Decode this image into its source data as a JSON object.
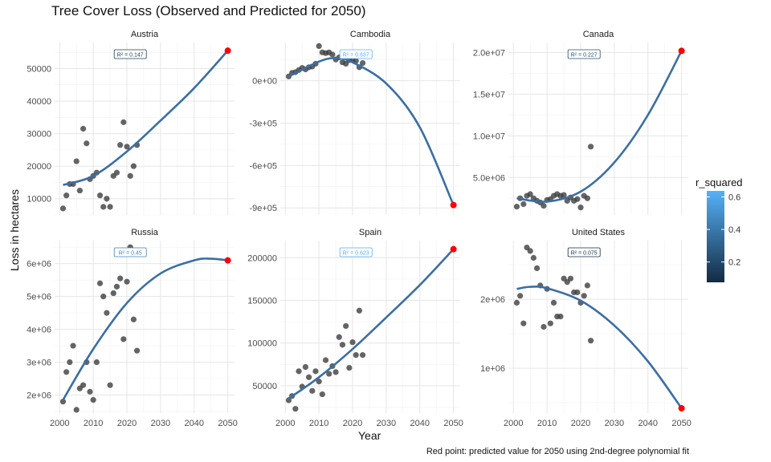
{
  "chart_data": {
    "type": "scatter",
    "title": "Tree Cover Loss (Observed and Predicted for 2050)",
    "xlabel": "Year",
    "ylabel": "Loss in hectares",
    "caption": "Red point: predicted value for 2050 using 2nd-degree polynomial fit",
    "x_ticks": [
      "2000",
      "2010",
      "2020",
      "2030",
      "2040",
      "2050"
    ],
    "x_tick_values": [
      2000,
      2010,
      2020,
      2030,
      2040,
      2050
    ],
    "xlim": [
      1998.5,
      2052
    ],
    "legend": {
      "title": "r_squared",
      "position": "right",
      "ticks": [
        "0.2",
        "0.4",
        "0.6"
      ],
      "tick_values": [
        0.2,
        0.4,
        0.6
      ],
      "range": [
        0.075,
        0.637
      ],
      "color_low": "#132B43",
      "color_high": "#56B1F7"
    },
    "colors": {
      "line": "#3A6EA5",
      "points": "#3d3d3d",
      "predicted": "#FF0000"
    },
    "panels": [
      {
        "name": "Austria",
        "r2_label": "R² = 0.147",
        "r2": 0.147,
        "ylim": [
          5000,
          58000
        ],
        "y_ticks": [
          "10000",
          "20000",
          "30000",
          "40000",
          "50000"
        ],
        "y_tick_values": [
          10000,
          20000,
          30000,
          40000,
          50000
        ],
        "years": [
          2001,
          2002,
          2003,
          2004,
          2005,
          2006,
          2007,
          2008,
          2009,
          2010,
          2011,
          2012,
          2013,
          2014,
          2015,
          2016,
          2017,
          2018,
          2019,
          2020,
          2021,
          2022,
          2023
        ],
        "values": [
          7000,
          11000,
          14500,
          14500,
          21500,
          12500,
          31500,
          27000,
          16000,
          17000,
          18000,
          11000,
          7500,
          10000,
          7500,
          17000,
          18000,
          26500,
          33500,
          26000,
          17000,
          20000,
          26500
        ],
        "predicted_2050": 55500,
        "curve": [
          [
            2001,
            14200
          ],
          [
            2010,
            17000
          ],
          [
            2020,
            24500
          ],
          [
            2030,
            34000
          ],
          [
            2040,
            44000
          ],
          [
            2050,
            55500
          ]
        ]
      },
      {
        "name": "Cambodia",
        "r2_label": "R² = 0.637",
        "r2": 0.637,
        "ylim": [
          -950000,
          270000
        ],
        "y_ticks": [
          "0e+00",
          "-3e+05",
          "-6e+05",
          "-9e+05"
        ],
        "y_tick_values": [
          0,
          -300000,
          -600000,
          -900000
        ],
        "years": [
          2001,
          2002,
          2003,
          2004,
          2005,
          2006,
          2007,
          2008,
          2009,
          2010,
          2011,
          2012,
          2013,
          2014,
          2015,
          2016,
          2017,
          2018,
          2019,
          2020,
          2021,
          2022,
          2023
        ],
        "values": [
          30000,
          55000,
          60000,
          75000,
          90000,
          80000,
          95000,
          100000,
          120000,
          245000,
          200000,
          195000,
          200000,
          185000,
          150000,
          165000,
          130000,
          120000,
          145000,
          145000,
          140000,
          95000,
          125000
        ],
        "predicted_2050": -880000,
        "curve": [
          [
            2001,
            30000
          ],
          [
            2010,
            135000
          ],
          [
            2015,
            160000
          ],
          [
            2020,
            130000
          ],
          [
            2030,
            -20000
          ],
          [
            2040,
            -330000
          ],
          [
            2050,
            -880000
          ]
        ]
      },
      {
        "name": "Canada",
        "r2_label": "R² = 0.227",
        "r2": 0.227,
        "ylim": [
          500000,
          21200000
        ],
        "y_ticks": [
          "5.0e+06",
          "1.0e+07",
          "1.5e+07",
          "2.0e+07"
        ],
        "y_tick_values": [
          5000000,
          10000000,
          15000000,
          20000000
        ],
        "years": [
          2001,
          2002,
          2003,
          2004,
          2005,
          2006,
          2007,
          2008,
          2009,
          2010,
          2011,
          2012,
          2013,
          2014,
          2015,
          2016,
          2017,
          2018,
          2019,
          2020,
          2021,
          2022,
          2023
        ],
        "values": [
          1500000,
          2500000,
          1800000,
          2800000,
          3000000,
          2500000,
          2200000,
          2000000,
          1600000,
          2300000,
          2400000,
          2800000,
          3000000,
          2800000,
          2900000,
          2200000,
          2600000,
          2200000,
          2400000,
          1400000,
          2800000,
          2500000,
          8700000
        ],
        "predicted_2050": 20200000,
        "curve": [
          [
            2001,
            2500000
          ],
          [
            2010,
            2100000
          ],
          [
            2020,
            3300000
          ],
          [
            2030,
            6800000
          ],
          [
            2040,
            12500000
          ],
          [
            2050,
            20200000
          ]
        ]
      },
      {
        "name": "Russia",
        "r2_label": "R² = 0.45",
        "r2": 0.45,
        "ylim": [
          1450000,
          6700000
        ],
        "y_ticks": [
          "2e+06",
          "3e+06",
          "4e+06",
          "5e+06",
          "6e+06"
        ],
        "y_tick_values": [
          2000000,
          3000000,
          4000000,
          5000000,
          6000000
        ],
        "years": [
          2001,
          2002,
          2003,
          2004,
          2005,
          2006,
          2007,
          2008,
          2009,
          2010,
          2011,
          2012,
          2013,
          2014,
          2015,
          2016,
          2017,
          2018,
          2019,
          2020,
          2021,
          2022,
          2023
        ],
        "values": [
          1800000,
          2700000,
          3000000,
          3500000,
          1550000,
          2200000,
          2300000,
          3000000,
          2100000,
          1850000,
          3000000,
          5400000,
          5000000,
          4500000,
          2300000,
          5100000,
          5300000,
          5550000,
          3700000,
          5450000,
          6500000,
          4300000,
          3350000
        ],
        "predicted_2050": 6100000,
        "curve": [
          [
            2001,
            1850000
          ],
          [
            2010,
            3400000
          ],
          [
            2020,
            4800000
          ],
          [
            2030,
            5700000
          ],
          [
            2040,
            6100000
          ],
          [
            2045,
            6150000
          ],
          [
            2050,
            6100000
          ]
        ]
      },
      {
        "name": "Spain",
        "r2_label": "R² = 0.623",
        "r2": 0.623,
        "ylim": [
          18000,
          220000
        ],
        "y_ticks": [
          "50000",
          "100000",
          "150000",
          "200000"
        ],
        "y_tick_values": [
          50000,
          100000,
          150000,
          200000
        ],
        "years": [
          2001,
          2002,
          2003,
          2004,
          2005,
          2006,
          2007,
          2008,
          2009,
          2010,
          2011,
          2012,
          2013,
          2014,
          2015,
          2016,
          2017,
          2018,
          2019,
          2020,
          2021,
          2022,
          2023
        ],
        "values": [
          33000,
          38000,
          23000,
          67000,
          49000,
          72000,
          60000,
          44000,
          67000,
          55000,
          40000,
          80000,
          64000,
          73000,
          66000,
          107000,
          98000,
          120000,
          71000,
          101000,
          86000,
          138000,
          86000
        ],
        "predicted_2050": 210000,
        "curve": [
          [
            2001,
            35000
          ],
          [
            2010,
            60000
          ],
          [
            2020,
            93000
          ],
          [
            2030,
            130000
          ],
          [
            2040,
            168000
          ],
          [
            2050,
            210000
          ]
        ]
      },
      {
        "name": "United States",
        "r2_label": "R² = 0.075",
        "r2": 0.075,
        "ylim": [
          350000,
          2850000
        ],
        "y_ticks": [
          "1e+06",
          "2e+06"
        ],
        "y_tick_values": [
          1000000,
          2000000
        ],
        "years": [
          2001,
          2002,
          2003,
          2004,
          2005,
          2006,
          2007,
          2008,
          2009,
          2010,
          2011,
          2012,
          2013,
          2014,
          2015,
          2016,
          2017,
          2018,
          2019,
          2020,
          2021,
          2022,
          2023
        ],
        "values": [
          1950000,
          2050000,
          1650000,
          2750000,
          2700000,
          2600000,
          2450000,
          2200000,
          1600000,
          2150000,
          1650000,
          1950000,
          1750000,
          1750000,
          2300000,
          2250000,
          2300000,
          2100000,
          2100000,
          1950000,
          2050000,
          2200000,
          1400000
        ],
        "predicted_2050": 420000,
        "curve": [
          [
            2001,
            2150000
          ],
          [
            2005,
            2180000
          ],
          [
            2010,
            2160000
          ],
          [
            2020,
            1980000
          ],
          [
            2030,
            1620000
          ],
          [
            2040,
            1100000
          ],
          [
            2050,
            420000
          ]
        ]
      }
    ]
  }
}
